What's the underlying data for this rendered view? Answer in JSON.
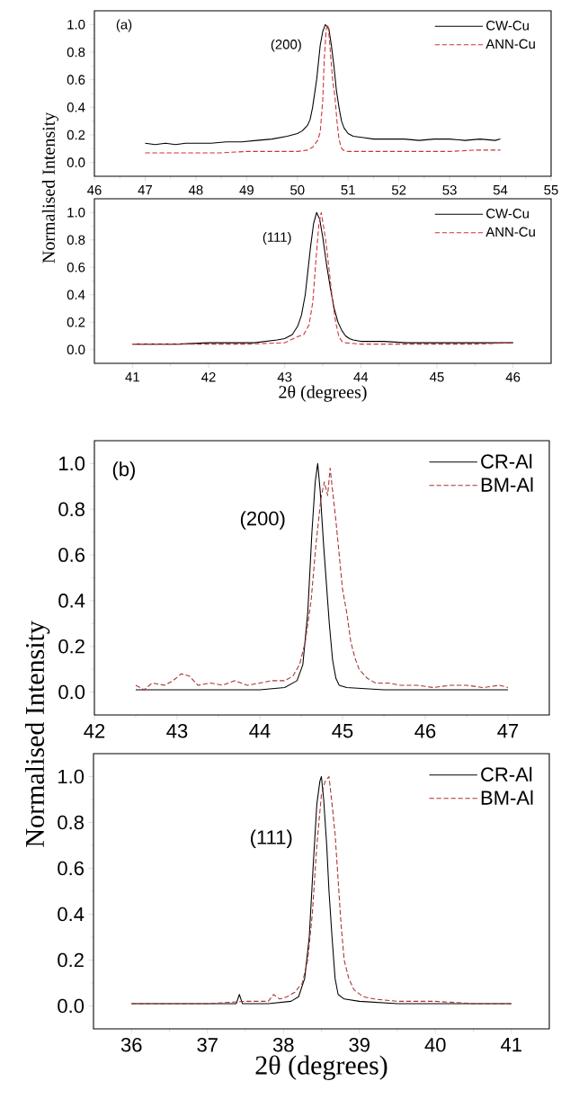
{
  "chart_data": [
    {
      "type": "line",
      "ylabel": "Normalised Intensity",
      "xlim": [
        46,
        55
      ],
      "ylim": [
        -0.1,
        1.1
      ],
      "xticks": [
        46,
        47,
        48,
        49,
        50,
        51,
        52,
        53,
        54,
        55
      ],
      "yticks": [
        {
          "value": 0,
          "label": "0.0"
        },
        {
          "value": 0.2,
          "label": "0.2"
        },
        {
          "value": 0.4,
          "label": "0.4"
        },
        {
          "value": 0.6,
          "label": "0.6"
        },
        {
          "value": 0.8,
          "label": "0.8"
        },
        {
          "value": 1.0,
          "label": "1.0"
        }
      ],
      "legend": "top right",
      "marker": "none",
      "annotations": [
        "(a)",
        "(200)"
      ],
      "series": [
        {
          "name": "CW-Cu",
          "color": "#000000",
          "line_style": "solid",
          "x": [
            47,
            47.2,
            47.4,
            47.6,
            47.8,
            48,
            48.3,
            48.6,
            48.9,
            49.2,
            49.5,
            49.8,
            50.0,
            50.1,
            50.2,
            50.25,
            50.3,
            50.38,
            50.45,
            50.5,
            50.55,
            50.62,
            50.67,
            50.72,
            50.77,
            50.82,
            50.87,
            50.92,
            51.0,
            51.1,
            51.3,
            51.5,
            51.8,
            52.1,
            52.4,
            52.7,
            53.0,
            53.3,
            53.6,
            53.9,
            54
          ],
          "values": [
            0.14,
            0.13,
            0.14,
            0.13,
            0.14,
            0.14,
            0.14,
            0.15,
            0.15,
            0.16,
            0.17,
            0.19,
            0.21,
            0.23,
            0.27,
            0.31,
            0.4,
            0.6,
            0.85,
            0.95,
            1.0,
            0.97,
            0.85,
            0.7,
            0.52,
            0.4,
            0.3,
            0.25,
            0.21,
            0.19,
            0.18,
            0.17,
            0.17,
            0.17,
            0.16,
            0.17,
            0.17,
            0.16,
            0.17,
            0.16,
            0.17
          ]
        },
        {
          "name": "ANN-Cu",
          "color": "#cc3333",
          "line_style": "dashed",
          "x": [
            47,
            47.5,
            48,
            48.5,
            49,
            49.5,
            50.0,
            50.2,
            50.3,
            50.4,
            50.45,
            50.5,
            50.53,
            50.57,
            50.6,
            50.63,
            50.66,
            50.7,
            50.74,
            50.78,
            50.82,
            50.86,
            50.9,
            51.0,
            51.5,
            52,
            52.5,
            53,
            53.5,
            54
          ],
          "values": [
            0.07,
            0.07,
            0.07,
            0.07,
            0.08,
            0.08,
            0.08,
            0.09,
            0.11,
            0.16,
            0.22,
            0.45,
            0.75,
            0.97,
            1.0,
            0.9,
            0.75,
            0.58,
            0.48,
            0.3,
            0.17,
            0.11,
            0.09,
            0.08,
            0.08,
            0.08,
            0.08,
            0.08,
            0.09,
            0.09
          ]
        }
      ]
    },
    {
      "type": "line",
      "xlabel": "2θ (degrees)",
      "xlim": [
        40.5,
        46.5
      ],
      "ylim": [
        -0.1,
        1.1
      ],
      "xticks": [
        41,
        42,
        43,
        44,
        45,
        46
      ],
      "yticks": [
        {
          "value": 0,
          "label": "0.0"
        },
        {
          "value": 0.2,
          "label": "0.2"
        },
        {
          "value": 0.4,
          "label": "0.4"
        },
        {
          "value": 0.6,
          "label": "0.6"
        },
        {
          "value": 0.8,
          "label": "0.8"
        },
        {
          "value": 1.0,
          "label": "1.0"
        }
      ],
      "legend": "top right",
      "marker": "none",
      "annotations": [
        "(111)"
      ],
      "series": [
        {
          "name": "CW-Cu",
          "color": "#000000",
          "line_style": "solid",
          "x": [
            41,
            41.3,
            41.6,
            42,
            42.3,
            42.6,
            42.9,
            43.0,
            43.1,
            43.17,
            43.22,
            43.27,
            43.3,
            43.34,
            43.38,
            43.42,
            43.46,
            43.5,
            43.55,
            43.6,
            43.65,
            43.7,
            43.75,
            43.8,
            43.85,
            43.9,
            44.0,
            44.3,
            44.6,
            45,
            45.5,
            46
          ],
          "values": [
            0.04,
            0.04,
            0.04,
            0.05,
            0.05,
            0.05,
            0.07,
            0.08,
            0.11,
            0.17,
            0.25,
            0.4,
            0.55,
            0.75,
            0.92,
            1.0,
            0.95,
            0.82,
            0.62,
            0.45,
            0.3,
            0.2,
            0.14,
            0.1,
            0.08,
            0.07,
            0.06,
            0.06,
            0.05,
            0.05,
            0.05,
            0.05
          ]
        },
        {
          "name": "ANN-Cu",
          "color": "#cc3333",
          "line_style": "dashed",
          "x": [
            41,
            41.5,
            42,
            42.5,
            43,
            43.15,
            43.25,
            43.32,
            43.37,
            43.41,
            43.45,
            43.48,
            43.51,
            43.55,
            43.59,
            43.63,
            43.67,
            43.71,
            43.75,
            43.8,
            44.0,
            44.5,
            45,
            45.5,
            46
          ],
          "values": [
            0.04,
            0.04,
            0.04,
            0.04,
            0.05,
            0.09,
            0.11,
            0.18,
            0.35,
            0.65,
            0.92,
            1.0,
            0.9,
            0.75,
            0.55,
            0.35,
            0.2,
            0.1,
            0.06,
            0.05,
            0.04,
            0.04,
            0.04,
            0.04,
            0.05
          ]
        }
      ]
    },
    {
      "type": "line",
      "ylabel": "Normalised Intensity",
      "xlim": [
        42,
        47.5
      ],
      "ylim": [
        -0.1,
        1.1
      ],
      "xticks": [
        42,
        43,
        44,
        45,
        46,
        47
      ],
      "yticks": [
        {
          "value": 0,
          "label": "0.0"
        },
        {
          "value": 0.2,
          "label": "0.2"
        },
        {
          "value": 0.4,
          "label": "0.4"
        },
        {
          "value": 0.6,
          "label": "0.6"
        },
        {
          "value": 0.8,
          "label": "0.8"
        },
        {
          "value": 1.0,
          "label": "1.0"
        }
      ],
      "legend": "top right",
      "marker": "none",
      "annotations": [
        "(b)",
        "(200)"
      ],
      "series": [
        {
          "name": "CR-Al",
          "color": "#000000",
          "line_style": "solid",
          "x": [
            42.5,
            43,
            43.5,
            44,
            44.3,
            44.45,
            44.52,
            44.58,
            44.63,
            44.67,
            44.7,
            44.73,
            44.77,
            44.8,
            44.84,
            44.88,
            44.92,
            44.96,
            45.05,
            45.5,
            46,
            46.5,
            47
          ],
          "values": [
            0.01,
            0.01,
            0.01,
            0.01,
            0.02,
            0.05,
            0.12,
            0.35,
            0.7,
            0.92,
            1.0,
            0.88,
            0.65,
            0.5,
            0.3,
            0.14,
            0.06,
            0.03,
            0.02,
            0.01,
            0.01,
            0.01,
            0.01
          ]
        },
        {
          "name": "BM-Al",
          "color": "#a83232",
          "line_style": "dashed",
          "x": [
            42.5,
            42.6,
            42.7,
            42.85,
            42.95,
            43.05,
            43.15,
            43.25,
            43.4,
            43.55,
            43.7,
            43.85,
            44.0,
            44.15,
            44.3,
            44.4,
            44.48,
            44.55,
            44.62,
            44.68,
            44.74,
            44.78,
            44.82,
            44.85,
            44.88,
            44.92,
            44.96,
            45.0,
            45.05,
            45.1,
            45.15,
            45.2,
            45.3,
            45.4,
            45.55,
            45.7,
            45.9,
            46.1,
            46.3,
            46.5,
            46.7,
            46.9,
            47
          ],
          "values": [
            0.03,
            0.01,
            0.04,
            0.03,
            0.05,
            0.08,
            0.07,
            0.03,
            0.04,
            0.03,
            0.05,
            0.03,
            0.04,
            0.05,
            0.05,
            0.07,
            0.12,
            0.22,
            0.4,
            0.65,
            0.85,
            0.92,
            0.86,
            0.98,
            0.88,
            0.75,
            0.6,
            0.45,
            0.35,
            0.22,
            0.15,
            0.1,
            0.06,
            0.04,
            0.04,
            0.03,
            0.03,
            0.02,
            0.03,
            0.03,
            0.02,
            0.03,
            0.02
          ]
        }
      ]
    },
    {
      "type": "line",
      "xlabel": "2θ (degrees)",
      "xlim": [
        35.5,
        41.5
      ],
      "ylim": [
        -0.1,
        1.1
      ],
      "xticks": [
        36,
        37,
        38,
        39,
        40,
        41
      ],
      "yticks": [
        {
          "value": 0,
          "label": "0.0"
        },
        {
          "value": 0.2,
          "label": "0.2"
        },
        {
          "value": 0.4,
          "label": "0.4"
        },
        {
          "value": 0.6,
          "label": "0.6"
        },
        {
          "value": 0.8,
          "label": "0.8"
        },
        {
          "value": 1.0,
          "label": "1.0"
        }
      ],
      "legend": "top right",
      "marker": "none",
      "annotations": [
        "(111)"
      ],
      "series": [
        {
          "name": "CR-Al",
          "color": "#000000",
          "line_style": "solid",
          "x": [
            36,
            36.5,
            37,
            37.38,
            37.42,
            37.46,
            37.8,
            38.1,
            38.2,
            38.28,
            38.34,
            38.39,
            38.44,
            38.48,
            38.5,
            38.53,
            38.57,
            38.6,
            38.64,
            38.68,
            38.72,
            38.8,
            39,
            39.5,
            40,
            40.5,
            41
          ],
          "values": [
            0.01,
            0.01,
            0.01,
            0.01,
            0.05,
            0.01,
            0.01,
            0.02,
            0.04,
            0.12,
            0.3,
            0.6,
            0.88,
            0.98,
            1.0,
            0.9,
            0.7,
            0.5,
            0.3,
            0.12,
            0.05,
            0.03,
            0.02,
            0.01,
            0.01,
            0.01,
            0.01
          ]
        },
        {
          "name": "BM-Al",
          "color": "#a83232",
          "line_style": "dashed",
          "x": [
            36,
            36.5,
            37,
            37.5,
            37.8,
            37.87,
            37.95,
            38.05,
            38.15,
            38.25,
            38.32,
            38.38,
            38.44,
            38.5,
            38.55,
            38.6,
            38.64,
            38.68,
            38.72,
            38.76,
            38.8,
            38.86,
            38.93,
            39.05,
            39.2,
            39.5,
            40,
            40.5,
            41
          ],
          "values": [
            0.01,
            0.01,
            0.01,
            0.02,
            0.02,
            0.05,
            0.03,
            0.04,
            0.06,
            0.1,
            0.2,
            0.4,
            0.7,
            0.92,
            0.98,
            1.0,
            0.88,
            0.75,
            0.55,
            0.35,
            0.2,
            0.12,
            0.07,
            0.04,
            0.03,
            0.02,
            0.02,
            0.01,
            0.01
          ]
        }
      ]
    }
  ]
}
